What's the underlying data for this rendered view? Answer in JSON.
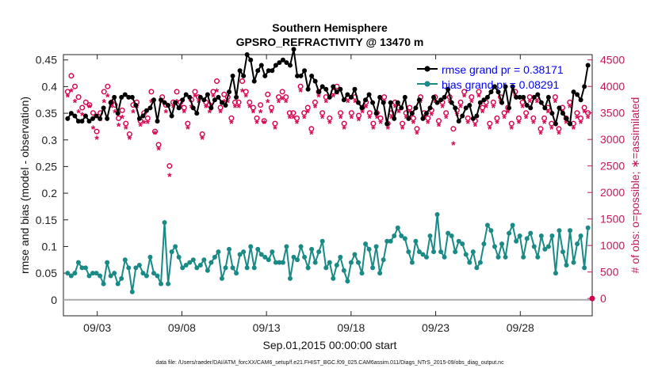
{
  "chart_data": {
    "type": "line",
    "title": "Southern Hemisphere",
    "subtitle": "GPSRO_REFRACTIVITY @ 13470 m",
    "xlabel": "Sep.01,2015 00:00:00 start",
    "ylabel": "rmse and bias (model - observation)",
    "y2label": "# of obs: o=possible; ∗=assimilated",
    "footnote": "data file: /Users/raeder/DAI/ATM_forcXX/CAM6_setup/f.e21.FHIST_BGC.f09_025.CAM6assim.011/Diags_NTrS_2015-09/obs_diag_output.nc",
    "xlim": [
      0,
      31.25
    ],
    "x_ticks": [
      {
        "value": 2,
        "label": "09/03"
      },
      {
        "value": 7,
        "label": "09/08"
      },
      {
        "value": 12,
        "label": "09/13"
      },
      {
        "value": 17,
        "label": "09/18"
      },
      {
        "value": 22,
        "label": "09/23"
      },
      {
        "value": 27,
        "label": "09/28"
      }
    ],
    "ylim": [
      -0.03,
      0.46
    ],
    "y_ticks": [
      0,
      0.05,
      0.1,
      0.15,
      0.2,
      0.25,
      0.3,
      0.35,
      0.4,
      0.45
    ],
    "y_tick_labels": [
      "0",
      "0.05",
      "0.1",
      "0.15",
      "0.2",
      "0.25",
      "0.3",
      "0.35",
      "0.4",
      "0.45"
    ],
    "y2lim": [
      -326,
      4600
    ],
    "y2_ticks": [
      0,
      500,
      1000,
      1500,
      2000,
      2500,
      3000,
      3500,
      4000,
      4500
    ],
    "y2_tick_labels": [
      "0",
      "500",
      "1000",
      "1500",
      "2000",
      "2500",
      "3000",
      "3500",
      "4000",
      "4500"
    ],
    "legend": [
      {
        "label": "rmse grand pr = 0.38171",
        "color": "#000000"
      },
      {
        "label": "bias grand pr = 0.08291",
        "color": "#008080"
      }
    ],
    "colors": {
      "rmse": "#000000",
      "bias": "#1a8a86",
      "obs": "#d6004f",
      "zero": "#aaaaaa"
    },
    "series": [
      {
        "name": "rmse",
        "values": [
          0.34,
          0.35,
          0.345,
          0.335,
          0.335,
          0.345,
          0.335,
          0.34,
          0.345,
          0.34,
          0.36,
          0.34,
          0.37,
          0.38,
          0.35,
          0.38,
          0.385,
          0.38,
          0.38,
          0.365,
          0.34,
          0.345,
          0.355,
          0.36,
          0.375,
          0.335,
          0.375,
          0.37,
          0.365,
          0.345,
          0.37,
          0.36,
          0.375,
          0.385,
          0.38,
          0.36,
          0.35,
          0.38,
          0.375,
          0.385,
          0.36,
          0.375,
          0.38,
          0.37,
          0.365,
          0.39,
          0.42,
          0.38,
          0.43,
          0.42,
          0.46,
          0.45,
          0.41,
          0.43,
          0.44,
          0.42,
          0.43,
          0.43,
          0.44,
          0.445,
          0.45,
          0.445,
          0.44,
          0.47,
          0.42,
          0.42,
          0.43,
          0.395,
          0.42,
          0.41,
          0.39,
          0.4,
          0.395,
          0.38,
          0.4,
          0.39,
          0.395,
          0.375,
          0.385,
          0.38,
          0.395,
          0.37,
          0.36,
          0.375,
          0.385,
          0.37,
          0.35,
          0.38,
          0.37,
          0.33,
          0.37,
          0.34,
          0.37,
          0.36,
          0.38,
          0.34,
          0.35,
          0.36,
          0.375,
          0.34,
          0.35,
          0.36,
          0.38,
          0.37,
          0.375,
          0.38,
          0.395,
          0.37,
          0.36,
          0.335,
          0.345,
          0.36,
          0.365,
          0.34,
          0.345,
          0.37,
          0.375,
          0.38,
          0.39,
          0.4,
          0.39,
          0.37,
          0.4,
          0.36,
          0.4,
          0.38,
          0.38,
          0.38,
          0.365,
          0.36,
          0.38,
          0.385,
          0.37,
          0.36,
          0.38,
          0.35,
          0.33,
          0.36,
          0.35,
          0.34,
          0.33,
          0.39,
          0.385,
          0.375,
          0.4,
          0.44
        ]
      },
      {
        "name": "bias",
        "values": [
          0.05,
          0.045,
          0.05,
          0.07,
          0.06,
          0.06,
          0.045,
          0.05,
          0.05,
          0.045,
          0.03,
          0.07,
          0.045,
          0.05,
          0.03,
          0.04,
          0.075,
          0.06,
          0.015,
          0.06,
          0.065,
          0.05,
          0.045,
          0.08,
          0.05,
          0.045,
          0.03,
          0.145,
          0.03,
          0.09,
          0.1,
          0.08,
          0.06,
          0.065,
          0.07,
          0.075,
          0.06,
          0.065,
          0.075,
          0.055,
          0.07,
          0.08,
          0.09,
          0.04,
          0.06,
          0.095,
          0.06,
          0.05,
          0.085,
          0.09,
          0.06,
          0.1,
          0.06,
          0.095,
          0.085,
          0.08,
          0.075,
          0.09,
          0.07,
          0.07,
          0.07,
          0.1,
          0.04,
          0.08,
          0.075,
          0.1,
          0.08,
          0.06,
          0.095,
          0.07,
          0.09,
          0.11,
          0.06,
          0.07,
          0.04,
          0.065,
          0.08,
          0.055,
          0.035,
          0.07,
          0.085,
          0.07,
          0.05,
          0.105,
          0.095,
          0.06,
          0.1,
          0.05,
          0.075,
          0.11,
          0.11,
          0.12,
          0.135,
          0.12,
          0.115,
          0.09,
          0.07,
          0.11,
          0.09,
          0.085,
          0.08,
          0.12,
          0.09,
          0.16,
          0.09,
          0.08,
          0.125,
          0.12,
          0.09,
          0.11,
          0.105,
          0.085,
          0.07,
          0.09,
          0.06,
          0.07,
          0.105,
          0.14,
          0.13,
          0.1,
          0.08,
          0.105,
          0.08,
          0.125,
          0.14,
          0.11,
          0.12,
          0.08,
          0.115,
          0.125,
          0.1,
          0.08,
          0.12,
          0.095,
          0.1,
          0.12,
          0.05,
          0.13,
          0.09,
          0.065,
          0.13,
          0.07,
          0.105,
          0.12,
          0.06,
          0.135
        ]
      },
      {
        "name": "possible obs",
        "marker": "o",
        "values": [
          3900,
          4200,
          4000,
          3800,
          3600,
          3700,
          3650,
          3500,
          3150,
          3500,
          3900,
          4000,
          3700,
          3650,
          3400,
          3550,
          3300,
          3100,
          3650,
          3700,
          3350,
          3500,
          3400,
          3900,
          3150,
          2900,
          3800,
          3650,
          2500,
          3700,
          3900,
          3700,
          3600,
          3300,
          3750,
          3900,
          3800,
          3100,
          3700,
          3650,
          3900,
          4100,
          3600,
          3850,
          3800,
          3400,
          3700,
          3700,
          4100,
          3900,
          3700,
          3600,
          3400,
          3650,
          3350,
          3850,
          3600,
          3300,
          3800,
          3900,
          3800,
          3500,
          3500,
          3400,
          4000,
          3500,
          3600,
          3200,
          3700,
          3900,
          3500,
          3800,
          3400,
          3900,
          4000,
          3500,
          3300,
          3800,
          3500,
          3800,
          3450,
          3600,
          3700,
          3500,
          3300,
          3500,
          3400,
          3800,
          3300,
          3500,
          3700,
          3600,
          3300,
          3500,
          3600,
          3400,
          3200,
          3800,
          3500,
          3400,
          3550,
          3800,
          3350,
          3700,
          3500,
          3800,
          3200,
          3550,
          3700,
          3900,
          3400,
          3800,
          3350,
          3900,
          3600,
          3700,
          3300,
          3700,
          3400,
          3800,
          3500,
          3600,
          3300,
          3900,
          3400,
          3700,
          3500,
          3800,
          3400,
          3800,
          3200,
          3400,
          3600,
          3300,
          3800,
          3200,
          3600,
          3400,
          3700,
          3300,
          3500,
          3400,
          3600,
          3500
        ]
      },
      {
        "name": "assimilated obs",
        "marker": "*",
        "values": [
          3800,
          3900,
          3700,
          3500,
          3450,
          3400,
          3600,
          3200,
          3000,
          3350,
          3700,
          3800,
          3600,
          3500,
          3250,
          3400,
          3200,
          3000,
          3500,
          3600,
          3250,
          3300,
          3300,
          3700,
          3100,
          2800,
          3700,
          3500,
          2300,
          3600,
          3700,
          3600,
          3500,
          3200,
          3600,
          3800,
          3700,
          3000,
          3600,
          3500,
          3800,
          3900,
          3500,
          3700,
          3700,
          3300,
          3600,
          3600,
          3900,
          3800,
          3600,
          3500,
          3300,
          3500,
          3300,
          3700,
          3500,
          3200,
          3700,
          3750,
          3700,
          3400,
          3400,
          3300,
          3900,
          3400,
          3500,
          3100,
          3600,
          3800,
          3400,
          3700,
          3300,
          3800,
          3850,
          3400,
          3200,
          3700,
          3400,
          3700,
          3350,
          3500,
          3600,
          3400,
          3200,
          3400,
          3300,
          3700,
          3200,
          3400,
          3600,
          3500,
          3200,
          3400,
          3500,
          3300,
          3100,
          3700,
          3400,
          3300,
          3450,
          3700,
          3250,
          3600,
          3400,
          3700,
          2900,
          3450,
          3600,
          3800,
          3300,
          3700,
          3250,
          3800,
          3500,
          3600,
          3200,
          3600,
          3300,
          3700,
          3400,
          3500,
          3200,
          3800,
          3300,
          3600,
          3400,
          3700,
          3300,
          3700,
          3100,
          3300,
          3500,
          3200,
          3700,
          3100,
          3500,
          3300,
          3600,
          3200,
          3400,
          3300,
          3500,
          3400
        ]
      }
    ]
  }
}
